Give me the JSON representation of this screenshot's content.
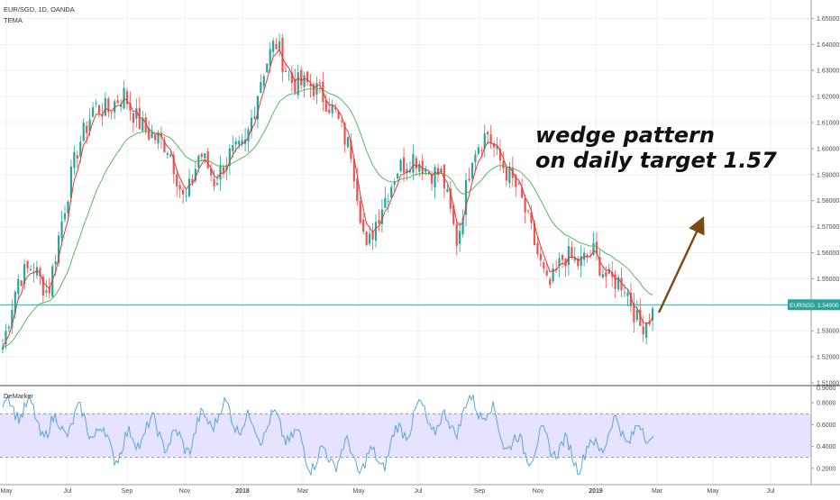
{
  "header": {
    "symbol": "EUR/SGD, 1D, OANDA",
    "indicator": "TEMA"
  },
  "oscillator": {
    "name": "DeMarker",
    "ticks": [
      "0.8000",
      "0.6000",
      "0.4000",
      "0.2000"
    ],
    "top_tick": "0.9000",
    "upper_band": 0.7,
    "lower_band": 0.3
  },
  "annotation": {
    "line1": "wedge pattern",
    "line2": "on daily target 1.57"
  },
  "price_tag": {
    "symbol": "EURSGD",
    "value": "1.54000"
  },
  "colors": {
    "up": "#26a69a",
    "down": "#ef5350",
    "tema_line": "#e53935",
    "slow_ma": "#4caf50",
    "demarker_line": "#5ba4d6",
    "band_fill": "#e6e3ff",
    "arrow": "#7a4a16",
    "price_line": "#26a69a"
  },
  "chart_data": {
    "type": "candlestick",
    "title": "EUR/SGD, 1D, OANDA",
    "ylim": [
      1.51,
      1.655
    ],
    "y_ticks": [
      "1.65000",
      "1.64000",
      "1.63000",
      "1.62000",
      "1.61000",
      "1.60000",
      "1.59000",
      "1.58000",
      "1.57000",
      "1.56000",
      "1.55000",
      "1.54000",
      "1.53000",
      "1.52000",
      "1.51000"
    ],
    "x_ticks": [
      "May",
      "Jul",
      "Sep",
      "Nov",
      "2018",
      "Mar",
      "May",
      "Jul",
      "Sep",
      "Nov",
      "2019",
      "Mar",
      "May",
      "Jul"
    ],
    "bold_x_ticks": [
      "2018",
      "2019"
    ],
    "last_price": 1.54,
    "price_path": [
      [
        "May",
        1.523
      ],
      [
        "May+",
        1.548
      ],
      [
        "Jun",
        1.557
      ],
      [
        "Jun+",
        1.545
      ],
      [
        "Jul",
        1.573
      ],
      [
        "Jul+",
        1.602
      ],
      [
        "Aug",
        1.618
      ],
      [
        "Aug+",
        1.613
      ],
      [
        "Sep",
        1.62
      ],
      [
        "Sep+",
        1.612
      ],
      [
        "Oct",
        1.604
      ],
      [
        "Oct+",
        1.598
      ],
      [
        "Nov",
        1.58
      ],
      [
        "Nov+",
        1.6
      ],
      [
        "Dec",
        1.585
      ],
      [
        "Dec+",
        1.598
      ],
      [
        "2018",
        1.603
      ],
      [
        "Jan+",
        1.625
      ],
      [
        "Feb",
        1.64
      ],
      [
        "Feb+",
        1.628
      ],
      [
        "Mar",
        1.625
      ],
      [
        "Mar+",
        1.619
      ],
      [
        "Apr",
        1.614
      ],
      [
        "Apr+",
        1.6
      ],
      [
        "May",
        1.558
      ],
      [
        "May+",
        1.578
      ],
      [
        "Jun",
        1.594
      ],
      [
        "Jun+",
        1.596
      ],
      [
        "Jul",
        1.59
      ],
      [
        "Jul+",
        1.592
      ],
      [
        "Aug",
        1.564
      ],
      [
        "Aug+",
        1.597
      ],
      [
        "Sep",
        1.607
      ],
      [
        "Sep+",
        1.595
      ],
      [
        "Oct",
        1.582
      ],
      [
        "Oct+",
        1.565
      ],
      [
        "Nov",
        1.548
      ],
      [
        "Nov+",
        1.558
      ],
      [
        "Dec",
        1.554
      ],
      [
        "Dec+",
        1.562
      ],
      [
        "2019",
        1.55
      ],
      [
        "Jan+",
        1.546
      ],
      [
        "Feb",
        1.532
      ],
      [
        "Mar",
        1.54
      ]
    ],
    "projection": {
      "from": [
        "Mar",
        1.537
      ],
      "to": [
        "May",
        1.571
      ]
    },
    "demarker": {
      "name": "DeMarker",
      "ylim": [
        0.1,
        0.9
      ],
      "bands": [
        0.3,
        0.7
      ],
      "path": [
        [
          "May",
          0.72
        ],
        [
          "Jul",
          0.62
        ],
        [
          "Sep",
          0.45
        ],
        [
          "Nov",
          0.5
        ],
        [
          "2018",
          0.7
        ],
        [
          "Mar",
          0.42
        ],
        [
          "May",
          0.22
        ],
        [
          "Jul",
          0.62
        ],
        [
          "Sep",
          0.72
        ],
        [
          "Nov",
          0.35
        ],
        [
          "2019",
          0.4
        ],
        [
          "Mar",
          0.62
        ]
      ]
    }
  }
}
